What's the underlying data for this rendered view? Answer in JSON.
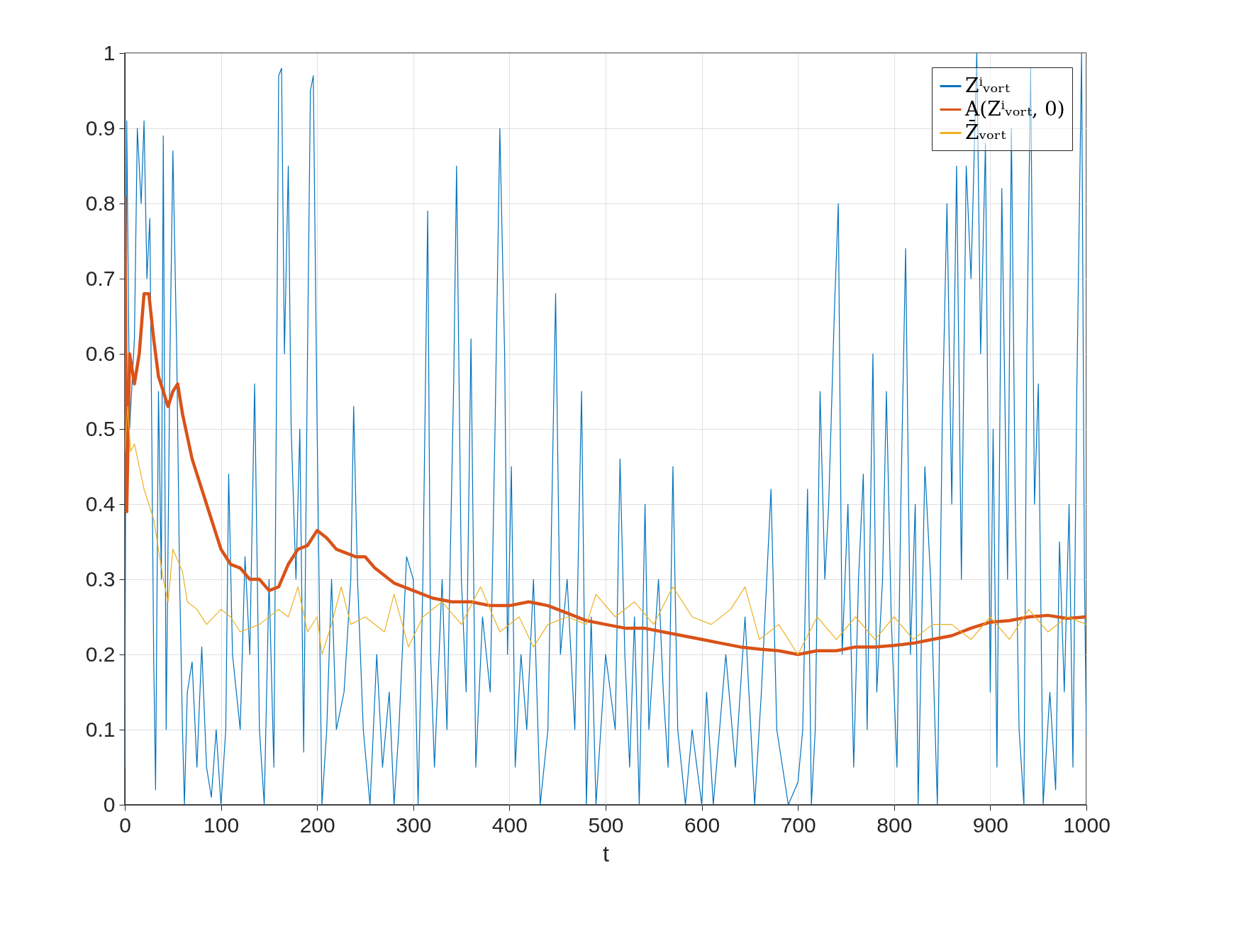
{
  "chart_data": {
    "type": "line",
    "xlabel": "t",
    "xlim": [
      0,
      1000
    ],
    "ylim": [
      0,
      1
    ],
    "xticks": [
      0,
      100,
      200,
      300,
      400,
      500,
      600,
      700,
      800,
      900,
      1000
    ],
    "yticks": [
      0,
      0.1,
      0.2,
      0.3,
      0.4,
      0.5,
      0.6,
      0.7,
      0.8,
      0.9,
      1
    ],
    "grid": true,
    "legend": "top right",
    "line_style": "solid",
    "marker": "none",
    "series": [
      {
        "name": "Zⁱᵥₒᵣₜ",
        "color": "#0072bd",
        "x": [
          0,
          2,
          5,
          10,
          13,
          17,
          20,
          23,
          26,
          28,
          30,
          32,
          35,
          38,
          40,
          43,
          47,
          50,
          54,
          57,
          60,
          62,
          65,
          70,
          75,
          80,
          85,
          90,
          95,
          100,
          105,
          108,
          112,
          120,
          125,
          130,
          135,
          140,
          145,
          150,
          155,
          158,
          160,
          163,
          166,
          170,
          173,
          178,
          182,
          186,
          190,
          193,
          196,
          200,
          205,
          210,
          215,
          220,
          228,
          235,
          238,
          242,
          248,
          255,
          262,
          268,
          275,
          280,
          285,
          293,
          300,
          305,
          310,
          315,
          318,
          322,
          330,
          335,
          338,
          342,
          345,
          350,
          355,
          360,
          365,
          372,
          380,
          385,
          390,
          395,
          398,
          402,
          406,
          412,
          418,
          425,
          432,
          440,
          448,
          453,
          460,
          468,
          475,
          480,
          485,
          490,
          500,
          510,
          515,
          520,
          525,
          530,
          535,
          541,
          545,
          555,
          560,
          565,
          570,
          575,
          583,
          590,
          600,
          605,
          612,
          625,
          635,
          645,
          655,
          662,
          672,
          678,
          690,
          700,
          705,
          710,
          714,
          718,
          723,
          728,
          732,
          738,
          742,
          746,
          752,
          758,
          763,
          768,
          772,
          778,
          782,
          788,
          792,
          797,
          803,
          807,
          812,
          817,
          822,
          825,
          832,
          838,
          845,
          850,
          855,
          860,
          865,
          870,
          875,
          880,
          886,
          890,
          895,
          900,
          903,
          907,
          912,
          918,
          922,
          926,
          930,
          935,
          938,
          942,
          946,
          950,
          955,
          962,
          968,
          972,
          977,
          982,
          986,
          990,
          995,
          998,
          1000
        ],
        "values": [
          0.05,
          0.91,
          0.5,
          0.62,
          0.9,
          0.8,
          0.91,
          0.7,
          0.78,
          0.5,
          0.2,
          0.02,
          0.55,
          0.3,
          0.89,
          0.1,
          0.6,
          0.87,
          0.6,
          0.3,
          0.1,
          0.0,
          0.15,
          0.19,
          0.05,
          0.21,
          0.05,
          0.01,
          0.1,
          0.0,
          0.1,
          0.44,
          0.2,
          0.1,
          0.33,
          0.2,
          0.56,
          0.1,
          0.0,
          0.3,
          0.05,
          0.6,
          0.97,
          0.98,
          0.6,
          0.85,
          0.5,
          0.3,
          0.5,
          0.07,
          0.6,
          0.95,
          0.97,
          0.5,
          0.0,
          0.1,
          0.3,
          0.1,
          0.15,
          0.3,
          0.53,
          0.3,
          0.1,
          0.0,
          0.2,
          0.05,
          0.15,
          0.0,
          0.1,
          0.33,
          0.3,
          0.0,
          0.3,
          0.79,
          0.2,
          0.05,
          0.3,
          0.1,
          0.3,
          0.56,
          0.85,
          0.3,
          0.15,
          0.62,
          0.05,
          0.25,
          0.15,
          0.5,
          0.9,
          0.6,
          0.2,
          0.45,
          0.05,
          0.2,
          0.1,
          0.3,
          0.0,
          0.1,
          0.68,
          0.2,
          0.3,
          0.1,
          0.55,
          0.0,
          0.25,
          0.0,
          0.2,
          0.1,
          0.46,
          0.2,
          0.05,
          0.25,
          0.0,
          0.4,
          0.1,
          0.3,
          0.15,
          0.05,
          0.45,
          0.1,
          0.0,
          0.1,
          0.0,
          0.15,
          0.0,
          0.2,
          0.05,
          0.25,
          0.0,
          0.15,
          0.42,
          0.1,
          0.0,
          0.03,
          0.1,
          0.42,
          0.0,
          0.1,
          0.55,
          0.3,
          0.4,
          0.66,
          0.8,
          0.2,
          0.4,
          0.05,
          0.3,
          0.44,
          0.1,
          0.6,
          0.15,
          0.3,
          0.55,
          0.25,
          0.05,
          0.4,
          0.74,
          0.2,
          0.4,
          0.0,
          0.45,
          0.3,
          0.0,
          0.5,
          0.8,
          0.4,
          0.85,
          0.3,
          0.85,
          0.7,
          1.0,
          0.6,
          0.88,
          0.15,
          0.5,
          0.05,
          0.82,
          0.3,
          0.9,
          0.4,
          0.1,
          0.0,
          0.6,
          0.98,
          0.4,
          0.56,
          0.0,
          0.15,
          0.02,
          0.35,
          0.15,
          0.4,
          0.05,
          0.55,
          1.0,
          0.3,
          0.09
        ]
      },
      {
        "name": "A(Zⁱᵥₒᵣₜ, 0)",
        "color": "#d95319",
        "x": [
          0,
          2,
          5,
          10,
          15,
          20,
          25,
          30,
          35,
          40,
          45,
          50,
          55,
          60,
          70,
          80,
          90,
          100,
          110,
          120,
          130,
          140,
          150,
          160,
          170,
          180,
          190,
          200,
          210,
          220,
          240,
          250,
          260,
          280,
          300,
          320,
          340,
          360,
          380,
          400,
          420,
          440,
          460,
          480,
          500,
          520,
          540,
          560,
          580,
          600,
          620,
          640,
          660,
          680,
          700,
          720,
          740,
          760,
          780,
          800,
          820,
          840,
          860,
          880,
          900,
          920,
          940,
          960,
          980,
          1000
        ],
        "values": [
          0.81,
          0.39,
          0.6,
          0.56,
          0.6,
          0.68,
          0.68,
          0.62,
          0.57,
          0.55,
          0.53,
          0.55,
          0.56,
          0.52,
          0.46,
          0.42,
          0.38,
          0.34,
          0.32,
          0.315,
          0.3,
          0.3,
          0.285,
          0.29,
          0.32,
          0.34,
          0.345,
          0.365,
          0.355,
          0.34,
          0.33,
          0.33,
          0.315,
          0.295,
          0.285,
          0.275,
          0.27,
          0.27,
          0.265,
          0.265,
          0.27,
          0.265,
          0.255,
          0.245,
          0.24,
          0.235,
          0.235,
          0.23,
          0.225,
          0.22,
          0.215,
          0.21,
          0.207,
          0.205,
          0.2,
          0.205,
          0.205,
          0.21,
          0.21,
          0.212,
          0.215,
          0.22,
          0.225,
          0.235,
          0.243,
          0.245,
          0.25,
          0.252,
          0.248,
          0.25
        ]
      },
      {
        "name": "Z̄ᵥₒᵣₜ",
        "color": "#edb120",
        "x": [
          0,
          3,
          6,
          10,
          20,
          30,
          40,
          45,
          50,
          60,
          65,
          75,
          85,
          100,
          110,
          120,
          140,
          160,
          170,
          180,
          190,
          200,
          205,
          215,
          225,
          235,
          250,
          270,
          280,
          295,
          310,
          330,
          350,
          370,
          390,
          410,
          425,
          440,
          460,
          480,
          490,
          510,
          530,
          550,
          570,
          590,
          610,
          630,
          645,
          660,
          680,
          700,
          720,
          740,
          760,
          780,
          800,
          820,
          840,
          860,
          880,
          900,
          920,
          940,
          960,
          980,
          1000
        ],
        "values": [
          0.47,
          0.53,
          0.47,
          0.48,
          0.42,
          0.38,
          0.3,
          0.27,
          0.34,
          0.31,
          0.27,
          0.26,
          0.24,
          0.26,
          0.25,
          0.23,
          0.24,
          0.26,
          0.25,
          0.29,
          0.23,
          0.25,
          0.2,
          0.24,
          0.29,
          0.24,
          0.25,
          0.23,
          0.28,
          0.21,
          0.25,
          0.27,
          0.24,
          0.29,
          0.23,
          0.25,
          0.21,
          0.24,
          0.25,
          0.24,
          0.28,
          0.25,
          0.27,
          0.24,
          0.29,
          0.25,
          0.24,
          0.26,
          0.29,
          0.22,
          0.24,
          0.2,
          0.25,
          0.22,
          0.25,
          0.22,
          0.25,
          0.22,
          0.24,
          0.24,
          0.22,
          0.25,
          0.22,
          0.26,
          0.23,
          0.25,
          0.24
        ]
      }
    ]
  }
}
